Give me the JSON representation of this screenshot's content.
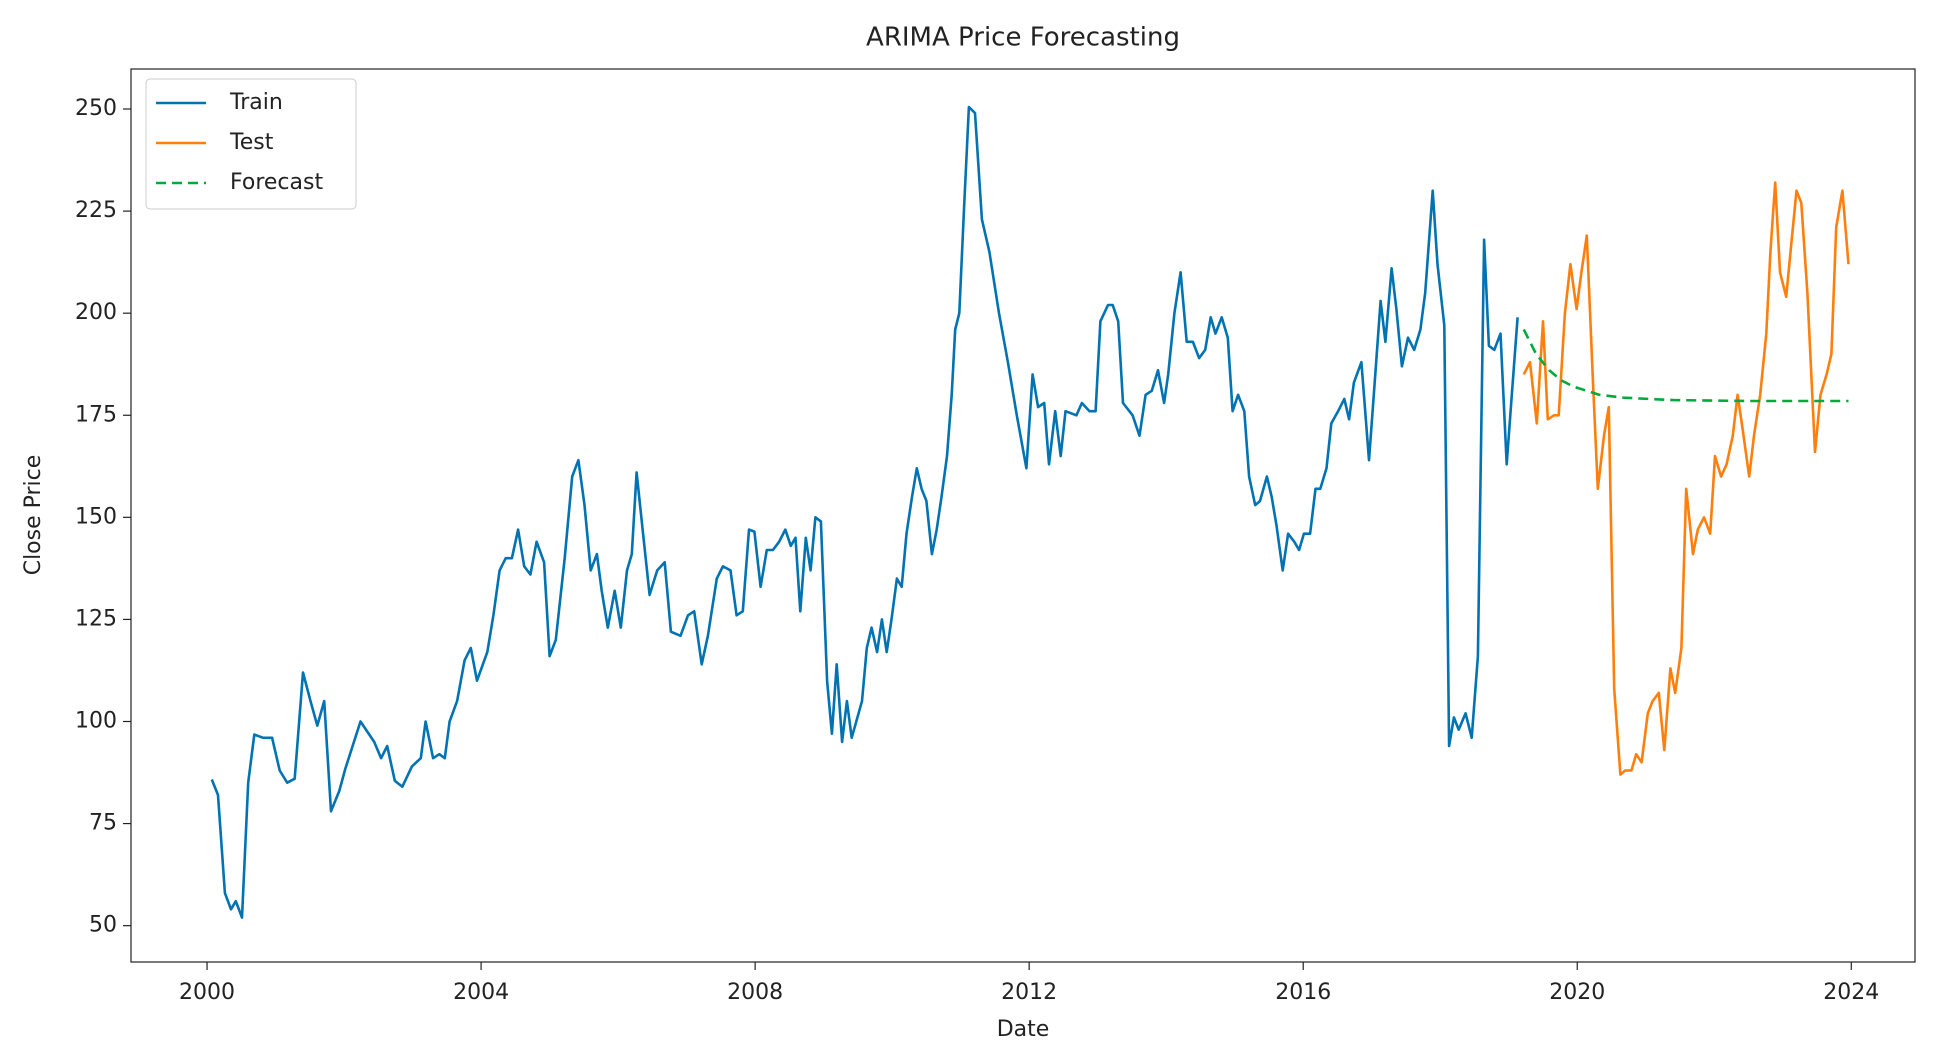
{
  "chart_data": {
    "type": "line",
    "title": "ARIMA Price Forecasting",
    "xlabel": "Date",
    "ylabel": "Close Price",
    "xlim": [
      1998.89,
      2024.93
    ],
    "ylim": [
      41.1,
      259.8
    ],
    "xticks": [
      2000,
      2004,
      2008,
      2012,
      2016,
      2020,
      2024
    ],
    "yticks": [
      50,
      75,
      100,
      125,
      150,
      175,
      200,
      225,
      250
    ],
    "legend": "upper left",
    "series": [
      {
        "name": "Train",
        "color": "#0173b2",
        "dash": false,
        "x": [
          2000.07,
          2000.16,
          2000.26,
          2000.35,
          2000.42,
          2000.51,
          2000.6,
          2000.69,
          2000.82,
          2000.95,
          2001.06,
          2001.17,
          2001.28,
          2001.4,
          2001.51,
          2001.61,
          2001.71,
          2001.81,
          2001.93,
          2002.02,
          2002.24,
          2002.44,
          2002.54,
          2002.63,
          2002.74,
          2002.85,
          2002.99,
          2003.12,
          2003.19,
          2003.3,
          2003.39,
          2003.47,
          2003.54,
          2003.65,
          2003.76,
          2003.85,
          2003.94,
          2004.09,
          2004.18,
          2004.27,
          2004.36,
          2004.45,
          2004.54,
          2004.63,
          2004.72,
          2004.81,
          2004.92,
          2005.0,
          2005.09,
          2005.22,
          2005.33,
          2005.42,
          2005.51,
          2005.6,
          2005.69,
          2005.76,
          2005.85,
          2005.95,
          2006.04,
          2006.13,
          2006.2,
          2006.27,
          2006.37,
          2006.46,
          2006.57,
          2006.68,
          2006.77,
          2006.91,
          2007.02,
          2007.11,
          2007.22,
          2007.31,
          2007.44,
          2007.53,
          2007.64,
          2007.73,
          2007.82,
          2007.91,
          2007.99,
          2008.08,
          2008.17,
          2008.26,
          2008.35,
          2008.44,
          2008.52,
          2008.59,
          2008.66,
          2008.74,
          2008.81,
          2008.88,
          2008.96,
          2009.05,
          2009.12,
          2009.19,
          2009.27,
          2009.34,
          2009.41,
          2009.56,
          2009.63,
          2009.7,
          2009.78,
          2009.85,
          2009.92,
          2009.99,
          2010.07,
          2010.14,
          2010.21,
          2010.29,
          2010.36,
          2010.43,
          2010.5,
          2010.58,
          2010.65,
          2010.72,
          2010.8,
          2010.87,
          2010.92,
          2010.98,
          2011.05,
          2011.12,
          2011.21,
          2011.31,
          2011.42,
          2011.56,
          2011.69,
          2011.82,
          2011.96,
          2012.05,
          2012.13,
          2012.22,
          2012.29,
          2012.38,
          2012.46,
          2012.53,
          2012.69,
          2012.77,
          2012.88,
          2012.97,
          2013.04,
          2013.15,
          2013.22,
          2013.3,
          2013.37,
          2013.51,
          2013.61,
          2013.7,
          2013.79,
          2013.88,
          2013.97,
          2014.03,
          2014.12,
          2014.21,
          2014.3,
          2014.39,
          2014.48,
          2014.57,
          2014.65,
          2014.72,
          2014.81,
          2014.9,
          2014.97,
          2015.05,
          2015.14,
          2015.21,
          2015.3,
          2015.37,
          2015.47,
          2015.54,
          2015.61,
          2015.7,
          2015.78,
          2015.87,
          2015.94,
          2016.01,
          2016.1,
          2016.18,
          2016.25,
          2016.34,
          2016.41,
          2016.51,
          2016.6,
          2016.67,
          2016.74,
          2016.85,
          2016.96,
          2017.03,
          2017.13,
          2017.2,
          2017.29,
          2017.36,
          2017.44,
          2017.53,
          2017.62,
          2017.71,
          2017.78,
          2017.89,
          2017.96,
          2018.06,
          2018.13,
          2018.2,
          2018.27,
          2018.37,
          2018.46,
          2018.55,
          2018.64,
          2018.71,
          2018.79,
          2018.88,
          2018.97,
          2019.04,
          2019.13
        ],
        "values": [
          85.8,
          82,
          58,
          54,
          56,
          52,
          85,
          96.8,
          96,
          96,
          88,
          85,
          86,
          112,
          105,
          99,
          105,
          78,
          83,
          88.5,
          100,
          95,
          91,
          94,
          85.5,
          84,
          89,
          91,
          100,
          91,
          92,
          91,
          100,
          105,
          115,
          118,
          110,
          117,
          126,
          137,
          140,
          140,
          147,
          138,
          136,
          144,
          139,
          116,
          120,
          140,
          160,
          164,
          153,
          137,
          141,
          132,
          123,
          132,
          123,
          137,
          141,
          161,
          145,
          131,
          137,
          139,
          122,
          121,
          126,
          127,
          114,
          121,
          135,
          138,
          137,
          126,
          127,
          147,
          146.5,
          133,
          142,
          142,
          144,
          147,
          143,
          145,
          127,
          145,
          137,
          150,
          149,
          110,
          97,
          114,
          95,
          105,
          96,
          105,
          118,
          123,
          117,
          125,
          117,
          125,
          135,
          133,
          146,
          155,
          162,
          157,
          154,
          141,
          147,
          155,
          165,
          180,
          196,
          200,
          226,
          250.5,
          249,
          223,
          215,
          200,
          188,
          175,
          162,
          185,
          177,
          178,
          163,
          176,
          165,
          176,
          175,
          178,
          176,
          176,
          198,
          202,
          202,
          198,
          178,
          175,
          170,
          180,
          181,
          186,
          178,
          185,
          200,
          210,
          193,
          193,
          189,
          191,
          199,
          195,
          199,
          194,
          176,
          180,
          176,
          160,
          153,
          154,
          160,
          155,
          148,
          137,
          146,
          144,
          142,
          146,
          146,
          157,
          157,
          162,
          173,
          176,
          179,
          174,
          183,
          188,
          164,
          180,
          203,
          193,
          211,
          201,
          187,
          194,
          191,
          196,
          205,
          230,
          212,
          197,
          94,
          101,
          98,
          102,
          96,
          116,
          218,
          192,
          191,
          195,
          163,
          179,
          199
        ]
      },
      {
        "name": "Test",
        "color": "#ff7f0e",
        "dash": false,
        "x": [
          2019.22,
          2019.31,
          2019.41,
          2019.5,
          2019.57,
          2019.66,
          2019.73,
          2019.82,
          2019.9,
          2019.99,
          2020.06,
          2020.14,
          2020.23,
          2020.3,
          2020.39,
          2020.46,
          2020.54,
          2020.63,
          2020.7,
          2020.79,
          2020.86,
          2020.94,
          2021.03,
          2021.1,
          2021.19,
          2021.27,
          2021.36,
          2021.43,
          2021.52,
          2021.59,
          2021.69,
          2021.76,
          2021.85,
          2021.94,
          2022.01,
          2022.1,
          2022.18,
          2022.27,
          2022.34,
          2022.41,
          2022.51,
          2022.58,
          2022.67,
          2022.76,
          2022.82,
          2022.89,
          2022.96,
          2023.05,
          2023.13,
          2023.2,
          2023.27,
          2023.36,
          2023.47,
          2023.55,
          2023.64,
          2023.71,
          2023.78,
          2023.87,
          2023.96
        ],
        "values": [
          185,
          188,
          173,
          198,
          174,
          175,
          175,
          200,
          212,
          201,
          210,
          219,
          183,
          157,
          170,
          177,
          108,
          87,
          88,
          88,
          92,
          90,
          102,
          105,
          107,
          93,
          113,
          107,
          118,
          157,
          141,
          147,
          150,
          146,
          165,
          160,
          163,
          170,
          180,
          172,
          160,
          170,
          180,
          195,
          215,
          232,
          210,
          204,
          218,
          230,
          227,
          205,
          166,
          180,
          185,
          190,
          221,
          230,
          212
        ]
      },
      {
        "name": "Forecast",
        "color": "#00aa3c",
        "dash": true,
        "x": [
          2019.22,
          2019.4,
          2019.59,
          2019.77,
          2019.95,
          2020.32,
          2020.68,
          2021.41,
          2022.51,
          2023.96
        ],
        "values": [
          196,
          190,
          186,
          183.5,
          182,
          180,
          179.3,
          178.7,
          178.5,
          178.5
        ]
      }
    ]
  }
}
